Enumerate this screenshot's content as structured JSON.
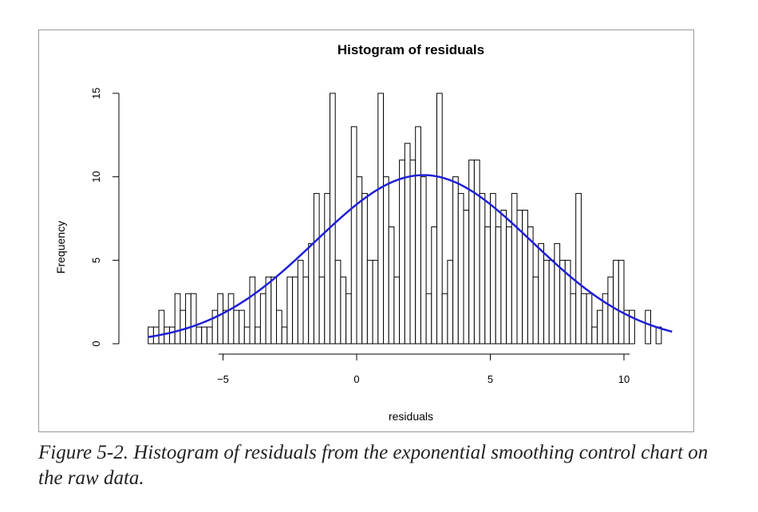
{
  "caption": "Figure 5-2. Histogram of residuals from the exponential smoothing control chart on the raw data.",
  "chart_data": {
    "type": "bar",
    "title": "Histogram of residuals",
    "xlabel": "residuals",
    "ylabel": "Frequency",
    "xlim": [
      -8,
      12
    ],
    "ylim": [
      0,
      15
    ],
    "x_ticks": [
      -5,
      0,
      5,
      10
    ],
    "x_tick_labels": [
      "−5",
      "0",
      "5",
      "10"
    ],
    "y_ticks": [
      0,
      5,
      10,
      15
    ],
    "y_tick_labels": [
      "0",
      "5",
      "10",
      "15"
    ],
    "bin_width": 0.2,
    "bin_start": -7.8,
    "values": [
      1,
      1,
      2,
      1,
      1,
      3,
      2,
      3,
      3,
      1,
      1,
      1,
      2,
      3,
      2,
      3,
      2,
      2,
      1,
      4,
      1,
      3,
      4,
      4,
      2,
      1,
      4,
      4,
      5,
      4,
      6,
      9,
      4,
      9,
      15,
      5,
      4,
      3,
      13,
      10,
      9,
      5,
      5,
      15,
      10,
      7,
      4,
      11,
      12,
      11,
      13,
      10,
      3,
      7,
      15,
      3,
      5,
      10,
      9,
      8,
      11,
      11,
      9,
      7,
      9,
      7,
      8,
      7,
      9,
      8,
      8,
      7,
      4,
      6,
      5,
      5,
      6,
      5,
      5,
      3,
      9,
      3,
      3,
      1,
      2,
      3,
      4,
      5,
      5,
      2,
      2,
      0,
      0,
      2,
      0,
      1
    ],
    "fit_curve": {
      "type": "normal",
      "mean": 2.5,
      "sd": 4.05,
      "peak": 10.1,
      "x_range": [
        -7.8,
        11.8
      ]
    }
  }
}
